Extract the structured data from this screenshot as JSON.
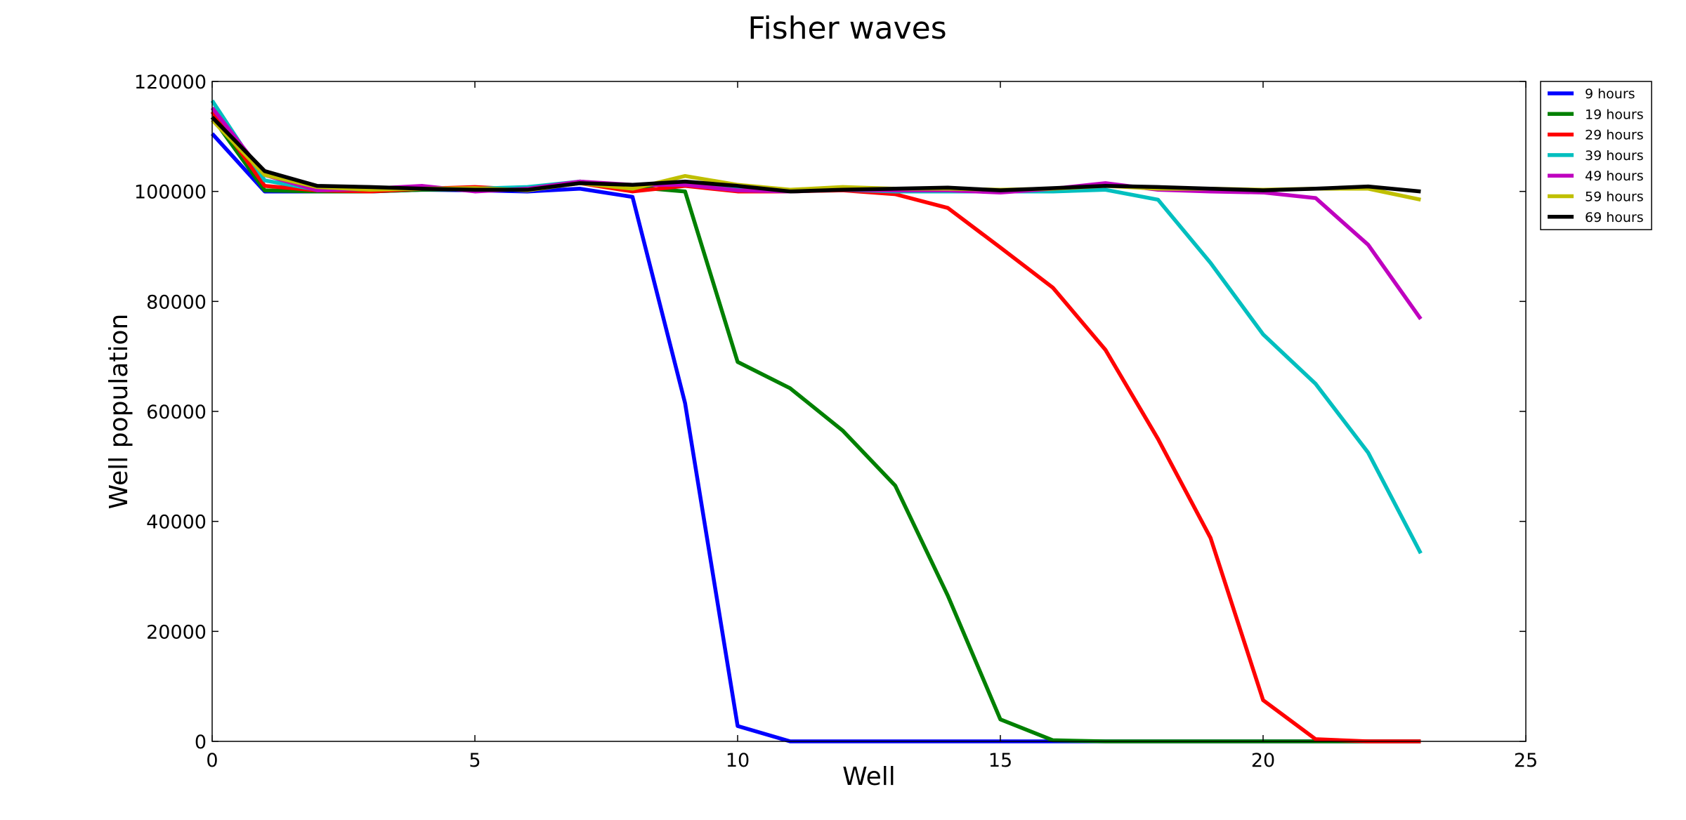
{
  "chart_data": {
    "type": "line",
    "title": "Fisher waves",
    "xlabel": "Well",
    "ylabel": "Well population",
    "xlim": [
      0,
      25
    ],
    "ylim": [
      0,
      120000
    ],
    "xticks": [
      0,
      5,
      10,
      15,
      20,
      25
    ],
    "yticks": [
      0,
      20000,
      40000,
      60000,
      80000,
      100000,
      120000
    ],
    "xtick_labels": [
      "0",
      "5",
      "10",
      "15",
      "20",
      "25"
    ],
    "ytick_labels": [
      "0",
      "20000",
      "40000",
      "60000",
      "80000",
      "100000",
      "120000"
    ],
    "grid": false,
    "legend_position": "outside-top-right",
    "x": [
      0,
      1,
      2,
      3,
      4,
      5,
      6,
      7,
      8,
      9,
      10,
      11,
      12,
      13,
      14,
      15,
      16,
      17,
      18,
      19,
      20,
      21,
      22,
      23
    ],
    "series": [
      {
        "name": "9 hours",
        "color": "#0000ff",
        "values": [
          110500,
          100000,
          100000,
          100000,
          100300,
          100200,
          100000,
          100500,
          99000,
          61500,
          2800,
          0,
          0,
          0,
          0,
          0,
          0,
          0,
          0,
          0,
          0,
          0,
          0,
          0
        ]
      },
      {
        "name": "19 hours",
        "color": "#008000",
        "values": [
          113500,
          100200,
          100000,
          100000,
          100300,
          100400,
          100300,
          101800,
          100800,
          100000,
          69000,
          64200,
          56500,
          46500,
          26500,
          4000,
          200,
          0,
          0,
          0,
          0,
          0,
          0,
          0
        ]
      },
      {
        "name": "29 hours",
        "color": "#ff0000",
        "values": [
          114500,
          101000,
          100200,
          100000,
          100500,
          100800,
          100300,
          101500,
          100000,
          101000,
          100000,
          100000,
          100200,
          99500,
          97000,
          89800,
          82500,
          71200,
          55000,
          37000,
          7500,
          400,
          0,
          0
        ]
      },
      {
        "name": "39 hours",
        "color": "#00bfbf",
        "values": [
          116500,
          102000,
          100300,
          100400,
          100500,
          100500,
          100800,
          101800,
          101000,
          101500,
          100500,
          100000,
          100300,
          100000,
          100000,
          100000,
          100000,
          100300,
          98500,
          87000,
          74000,
          65000,
          52500,
          34200
        ]
      },
      {
        "name": "49 hours",
        "color": "#bf00bf",
        "values": [
          115200,
          103000,
          100200,
          100500,
          101000,
          100000,
          100500,
          101800,
          101200,
          101200,
          100200,
          100000,
          100300,
          100200,
          100200,
          99800,
          100500,
          101500,
          100300,
          100000,
          99800,
          98800,
          90300,
          76800
        ]
      },
      {
        "name": "59 hours",
        "color": "#bfbf00",
        "values": [
          113000,
          103000,
          100800,
          100300,
          100500,
          100600,
          100200,
          101500,
          100500,
          102800,
          101200,
          100300,
          100800,
          100500,
          100500,
          100300,
          100500,
          101000,
          100500,
          100500,
          100300,
          100500,
          100500,
          98500
        ]
      },
      {
        "name": "69 hours",
        "color": "#000000",
        "values": [
          113500,
          103700,
          101000,
          100800,
          100500,
          100300,
          100300,
          101500,
          101200,
          101800,
          101000,
          100000,
          100300,
          100500,
          100700,
          100200,
          100600,
          101000,
          100800,
          100500,
          100200,
          100500,
          100900,
          100000
        ]
      }
    ]
  }
}
